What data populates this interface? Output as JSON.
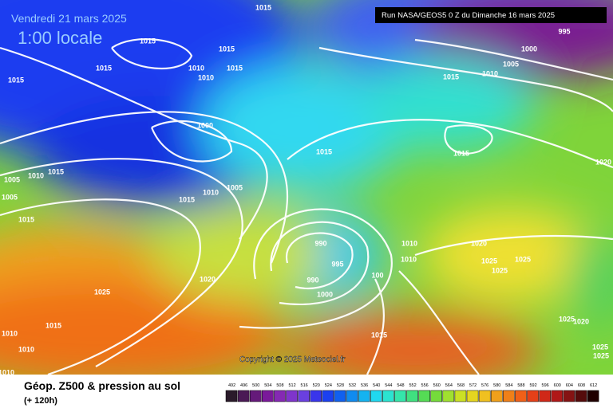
{
  "header": {
    "date": "Vendredi 21 mars 2025",
    "time": "1:00 locale",
    "run": "Run NASA/GEOS5 0 Z du Dimanche 16 mars 2025"
  },
  "map": {
    "copyright": "Copyright © 2025 Meteociel.fr",
    "isobar_labels": [
      "1015",
      "995",
      "1000",
      "1005",
      "1010",
      "1015",
      "1015",
      "1015",
      "1015",
      "1015",
      "1010",
      "1010",
      "1015",
      "1000",
      "1015",
      "1015",
      "1020",
      "1005",
      "1010",
      "1015",
      "1005",
      "1010",
      "1005",
      "1015",
      "1015",
      "990",
      "995",
      "990",
      "1000",
      "1010",
      "1020",
      "1025",
      "1025",
      "1025",
      "1010",
      "100",
      "1020",
      "1025",
      "1015",
      "1010",
      "1010",
      "1015",
      "1025",
      "1025",
      "1020",
      "1025",
      "1010"
    ]
  },
  "footer": {
    "title": "Géop. Z500 & pression au sol",
    "lead": "(+ 120h)",
    "scale": [
      492,
      496,
      500,
      504,
      508,
      512,
      516,
      520,
      524,
      528,
      532,
      536,
      540,
      544,
      548,
      552,
      556,
      560,
      564,
      568,
      572,
      576,
      580,
      584,
      588,
      592,
      596,
      600,
      604,
      608,
      612
    ]
  }
}
